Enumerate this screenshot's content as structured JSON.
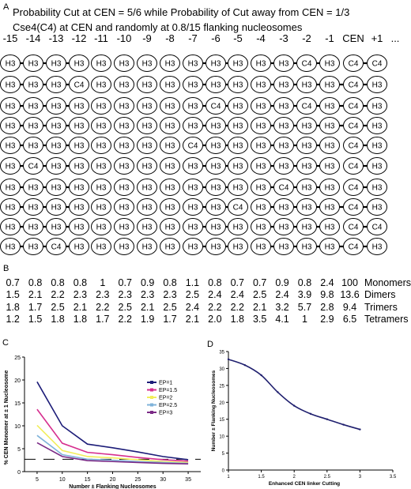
{
  "panel_a": {
    "letter": "A",
    "title_line1": "Probability Cut at CEN = 5/6 while Probability of Cut away from CEN = 1/3",
    "title_line2": "Cse4(C4) at CEN and randomly at 0.8/15 flanking nucleosomes",
    "positions": [
      "-15",
      "-14",
      "-13",
      "-12",
      "-11",
      "-10",
      "-9",
      "-8",
      "-7",
      "-6",
      "-5",
      "-4",
      "-3",
      "-2",
      "-1",
      "CEN",
      "+1",
      "..."
    ],
    "rows": [
      {
        "nodes": [
          "H3",
          "H3",
          "H3",
          "H3",
          "H3",
          "H3",
          "H3",
          "H3",
          "H3",
          "H3",
          "H3",
          "H3",
          "H3",
          "C4",
          "H3",
          "C4",
          "C4"
        ],
        "links": [
          1,
          1,
          1,
          0,
          0,
          0,
          0,
          0,
          1,
          1,
          0,
          1,
          1,
          1,
          0,
          1
        ]
      },
      {
        "nodes": [
          "H3",
          "H3",
          "H3",
          "C4",
          "H3",
          "H3",
          "H3",
          "H3",
          "H3",
          "H3",
          "H3",
          "H3",
          "H3",
          "H3",
          "H3",
          "C4",
          "H3"
        ],
        "links": [
          1,
          1,
          1,
          0,
          0,
          0,
          0,
          0,
          1,
          1,
          0,
          1,
          1,
          1,
          1,
          1
        ]
      },
      {
        "nodes": [
          "H3",
          "H3",
          "H3",
          "H3",
          "H3",
          "H3",
          "H3",
          "H3",
          "H3",
          "C4",
          "H3",
          "H3",
          "H3",
          "C4",
          "H3",
          "C4",
          "H3"
        ],
        "links": [
          1,
          1,
          1,
          0,
          0,
          0,
          0,
          0,
          1,
          1,
          0,
          1,
          1,
          1,
          1,
          1
        ]
      },
      {
        "nodes": [
          "H3",
          "H3",
          "H3",
          "H3",
          "H3",
          "H3",
          "H3",
          "H3",
          "H3",
          "H3",
          "H3",
          "H3",
          "H3",
          "H3",
          "H3",
          "C4",
          "H3"
        ],
        "links": [
          1,
          1,
          1,
          0,
          0,
          0,
          0,
          0,
          1,
          1,
          0,
          1,
          1,
          1,
          1,
          1
        ]
      },
      {
        "nodes": [
          "H3",
          "H3",
          "H3",
          "H3",
          "H3",
          "H3",
          "H3",
          "H3",
          "C4",
          "H3",
          "H3",
          "H3",
          "H3",
          "H3",
          "H3",
          "C4",
          "H3"
        ],
        "links": [
          1,
          1,
          1,
          0,
          0,
          0,
          0,
          0,
          1,
          1,
          0,
          1,
          1,
          1,
          0,
          1
        ]
      },
      {
        "nodes": [
          "H3",
          "C4",
          "H3",
          "H3",
          "H3",
          "H3",
          "H3",
          "H3",
          "H3",
          "H3",
          "H3",
          "H3",
          "H3",
          "H3",
          "H3",
          "C4",
          "H3"
        ],
        "links": [
          1,
          1,
          1,
          0,
          0,
          0,
          0,
          0,
          1,
          1,
          0,
          1,
          1,
          1,
          0,
          1
        ]
      },
      {
        "nodes": [
          "H3",
          "H3",
          "H3",
          "H3",
          "H3",
          "H3",
          "H3",
          "H3",
          "H3",
          "H3",
          "H3",
          "H3",
          "C4",
          "H3",
          "H3",
          "C4",
          "H3"
        ],
        "links": [
          1,
          1,
          1,
          0,
          0,
          0,
          0,
          0,
          1,
          1,
          0,
          1,
          1,
          1,
          0,
          1
        ]
      },
      {
        "nodes": [
          "H3",
          "H3",
          "H3",
          "H3",
          "H3",
          "H3",
          "H3",
          "H3",
          "H3",
          "H3",
          "C4",
          "H3",
          "H3",
          "H3",
          "H3",
          "C4",
          "H3"
        ],
        "links": [
          1,
          1,
          1,
          0,
          0,
          0,
          0,
          0,
          1,
          1,
          0,
          1,
          1,
          1,
          1,
          1
        ]
      },
      {
        "nodes": [
          "H3",
          "H3",
          "H3",
          "H3",
          "H3",
          "H3",
          "H3",
          "H3",
          "H3",
          "H3",
          "H3",
          "H3",
          "H3",
          "H3",
          "H3",
          "C4",
          "C4"
        ],
        "links": [
          1,
          1,
          1,
          0,
          0,
          0,
          0,
          0,
          1,
          1,
          0,
          1,
          1,
          1,
          0,
          1
        ]
      },
      {
        "nodes": [
          "H3",
          "H3",
          "C4",
          "H3",
          "H3",
          "H3",
          "H3",
          "H3",
          "H3",
          "H3",
          "H3",
          "H3",
          "H3",
          "H3",
          "H3",
          "C4",
          "H3"
        ],
        "links": [
          1,
          1,
          1,
          0,
          0,
          0,
          0,
          0,
          1,
          1,
          0,
          1,
          1,
          1,
          1,
          1
        ]
      }
    ]
  },
  "panel_b": {
    "letter": "B",
    "rows": [
      {
        "label": "Monomers",
        "values": [
          "0.7",
          "0.8",
          "0.8",
          "0.8",
          "1",
          "0.7",
          "0.9",
          "0.8",
          "1.1",
          "0.8",
          "0.7",
          "0.7",
          "0.9",
          "0.8",
          "2.4",
          "100"
        ]
      },
      {
        "label": "Dimers",
        "values": [
          "1.5",
          "2.1",
          "2.2",
          "2.3",
          "2.3",
          "2.3",
          "2.3",
          "2.3",
          "2.5",
          "2.4",
          "2.4",
          "2.5",
          "2.4",
          "3.9",
          "9.8",
          "13.6"
        ]
      },
      {
        "label": "Trimers",
        "values": [
          "1.8",
          "1.7",
          "2.5",
          "2.1",
          "2.2",
          "2.5",
          "2.1",
          "2.5",
          "2.4",
          "2.2",
          "2.2",
          "2.1",
          "3.2",
          "5.7",
          "2.8",
          "9.4"
        ]
      },
      {
        "label": "Tetramers",
        "values": [
          "1.2",
          "1.5",
          "1.8",
          "1.8",
          "1.7",
          "2.2",
          "1.9",
          "1.7",
          "2.1",
          "2.0",
          "1.8",
          "3.5",
          "4.1",
          "1",
          "2.9",
          "6.5"
        ]
      }
    ]
  },
  "panel_c": {
    "letter": "C",
    "colors": {
      "EP=1": "#1c1c78",
      "EP=1.5": "#d62e8e",
      "EP=2": "#f2ee5a",
      "EP=2.5": "#7fb3da",
      "EP=3": "#7b2a86"
    }
  },
  "panel_d": {
    "letter": "D",
    "line_color": "#1f1f6e"
  },
  "chart_data": [
    {
      "type": "line",
      "panel": "C",
      "title": "",
      "xlabel": "Number ± Flanking Nucleosomes",
      "ylabel": "% CEN Monomer at ± 1 Nucleosome",
      "x": [
        5,
        10,
        15,
        20,
        25,
        30,
        35
      ],
      "xlim": [
        2.5,
        37.5
      ],
      "ylim": [
        0,
        25
      ],
      "xticks": [
        "5",
        "10",
        "15",
        "20",
        "25",
        "30",
        "35"
      ],
      "yticks": [
        "0",
        "5",
        "10",
        "15",
        "20",
        "25"
      ],
      "series": [
        {
          "name": "EP=1",
          "values": [
            19.6,
            10.0,
            6.0,
            5.2,
            4.3,
            3.3,
            2.6
          ]
        },
        {
          "name": "EP=1.5",
          "values": [
            13.6,
            6.2,
            4.2,
            3.7,
            3.1,
            2.6,
            2.3
          ]
        },
        {
          "name": "EP=2",
          "values": [
            10.1,
            4.6,
            3.3,
            3.0,
            2.6,
            2.2,
            2.0
          ]
        },
        {
          "name": "EP=2.5",
          "values": [
            7.9,
            3.7,
            2.7,
            2.5,
            2.2,
            2.0,
            1.8
          ]
        },
        {
          "name": "EP=3",
          "values": [
            6.3,
            3.3,
            2.4,
            2.2,
            2.0,
            1.8,
            1.7
          ]
        }
      ],
      "reference_y": 2.7,
      "legend": "top-right",
      "grid": false
    },
    {
      "type": "line",
      "panel": "D",
      "title": "",
      "xlabel": "Enhanced CEN linker Cutting",
      "ylabel": "Number ± Flanking Nucleosomes",
      "x": [
        1,
        1.25,
        1.5,
        1.75,
        2,
        2.25,
        2.5,
        2.75,
        3
      ],
      "xlim": [
        1,
        3.5
      ],
      "ylim": [
        0,
        35
      ],
      "xticks": [
        "1",
        "1.5",
        "2",
        "2.5",
        "3",
        "3.5"
      ],
      "yticks": [
        "0",
        "5",
        "10",
        "15",
        "20",
        "25",
        "30",
        "35"
      ],
      "series": [
        {
          "values": [
            32.7,
            31.0,
            28.0,
            23.0,
            19.0,
            16.6,
            15.0,
            13.4,
            12.0
          ]
        }
      ],
      "grid": false
    }
  ]
}
